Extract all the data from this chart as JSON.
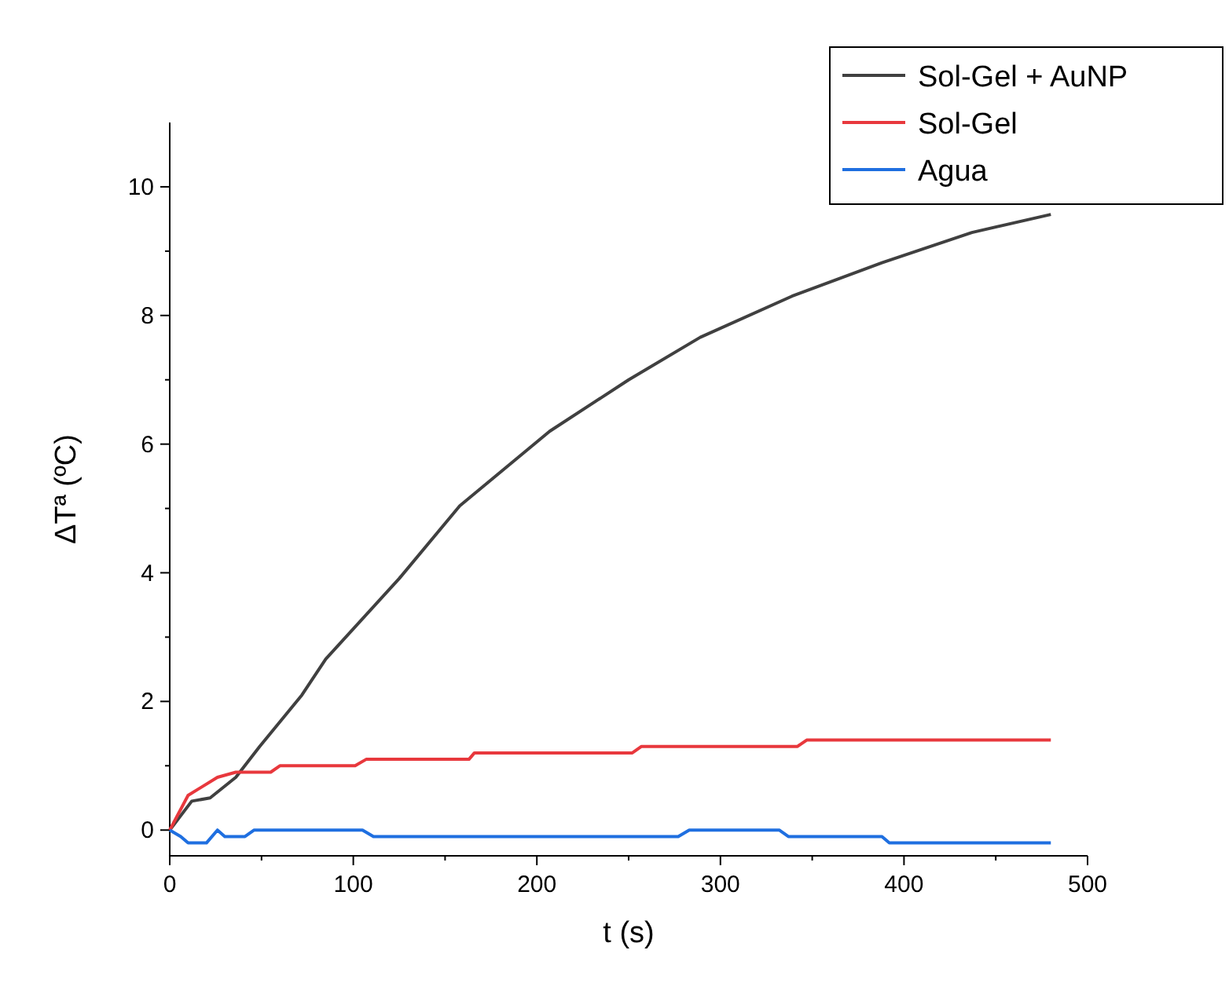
{
  "chart_data": {
    "type": "line",
    "xlabel": "t (s)",
    "ylabel": "ΔTª (ºC)",
    "xlim": [
      0,
      500
    ],
    "ylim": [
      -0.4,
      11
    ],
    "xticks": [
      0,
      {
        "value": 50,
        "label": null
      },
      100,
      {
        "value": 150,
        "label": null
      },
      200,
      {
        "value": 250,
        "label": null
      },
      300,
      {
        "value": 350,
        "label": null
      },
      400,
      {
        "value": 450,
        "label": null
      },
      500
    ],
    "yticks": [
      0,
      {
        "value": 1,
        "label": null
      },
      2,
      {
        "value": 3,
        "label": null
      },
      4,
      {
        "value": 5,
        "label": null
      },
      6,
      {
        "value": 7,
        "label": null
      },
      8,
      {
        "value": 9,
        "label": null
      },
      10
    ],
    "grid": false,
    "legend": "top right",
    "marker": "none",
    "line_style": "solid",
    "series": [
      {
        "name": "Sol-Gel + AuNP",
        "color": "#404040",
        "x": [
          0,
          12,
          22,
          36,
          49,
          72,
          85,
          125,
          158,
          207,
          250,
          289,
          339,
          388,
          437,
          480
        ],
        "values": [
          0,
          0.45,
          0.5,
          0.82,
          1.3,
          2.1,
          2.66,
          3.91,
          5.04,
          6.2,
          7.0,
          7.66,
          8.3,
          8.82,
          9.29,
          9.57
        ]
      },
      {
        "name": "Sol-Gel",
        "color": "#e8383d",
        "x": [
          0,
          10,
          26,
          36,
          55,
          60,
          101,
          107,
          163,
          166,
          252,
          257,
          342,
          347,
          480
        ],
        "values": [
          0,
          0.54,
          0.82,
          0.9,
          0.9,
          1.0,
          1.0,
          1.1,
          1.1,
          1.2,
          1.2,
          1.3,
          1.3,
          1.4,
          1.4
        ]
      },
      {
        "name": "Agua",
        "color": "#1f6fe0",
        "x": [
          0,
          6,
          10,
          20,
          26,
          30,
          41,
          46,
          105,
          111,
          277,
          283,
          332,
          337,
          388,
          392,
          480
        ],
        "values": [
          0,
          -0.1,
          -0.2,
          -0.2,
          0,
          -0.1,
          -0.1,
          0,
          0,
          -0.1,
          -0.1,
          0,
          0,
          -0.1,
          -0.1,
          -0.2,
          -0.2
        ]
      }
    ]
  }
}
